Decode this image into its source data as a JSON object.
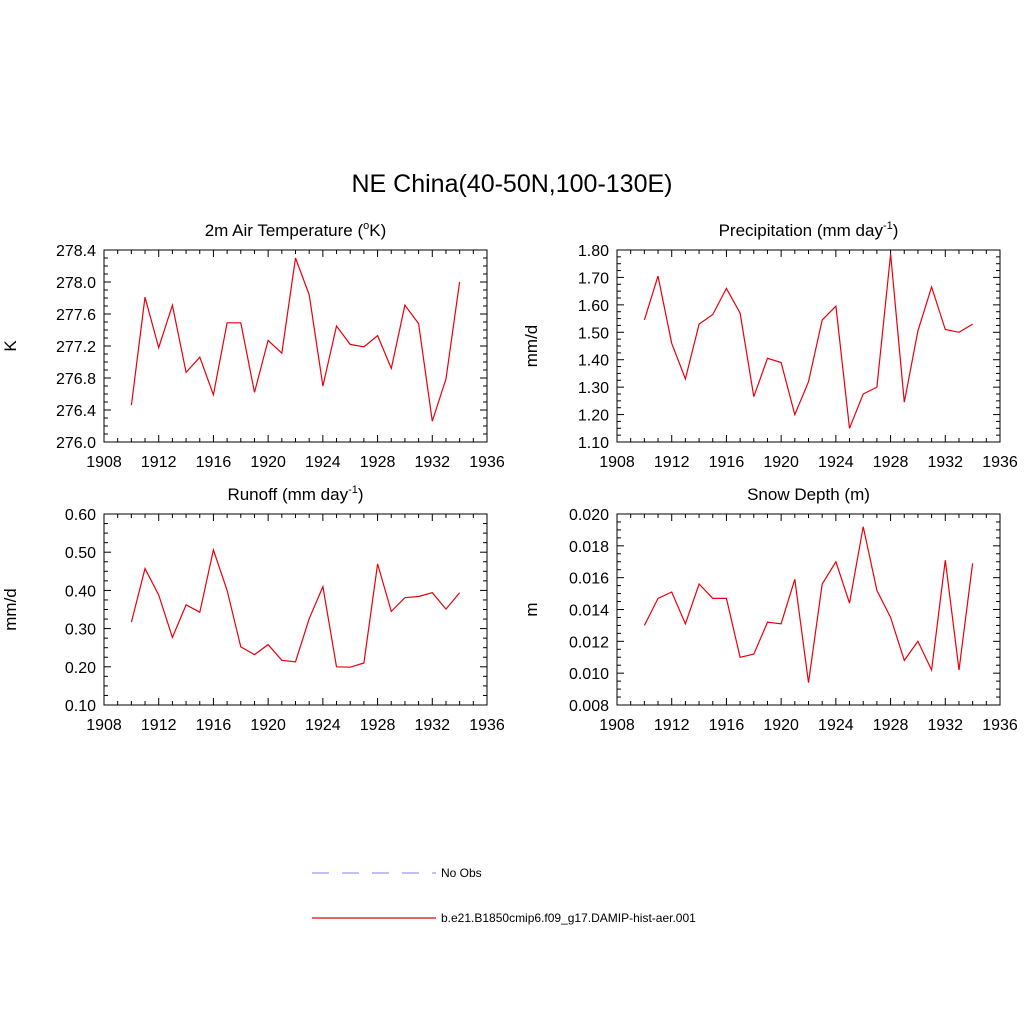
{
  "title": "NE China(40-50N,100-130E)",
  "colors": {
    "model_line": "#e8000b",
    "obs_line": "#9999ff"
  },
  "legend": {
    "items": [
      {
        "label": "No Obs",
        "style": "dashed",
        "color": "#9999ff"
      },
      {
        "label": "b.e21.B1850cmip6.f09_g17.DAMIP-hist-aer.001",
        "style": "solid",
        "color": "#e8000b"
      }
    ]
  },
  "chart_data": [
    {
      "type": "line",
      "title": "2m Air Temperature (",
      "title_super": "o",
      "title_tail": "K)",
      "ylabel": "K",
      "xlim": [
        1908,
        1936
      ],
      "ylim": [
        276.0,
        278.4
      ],
      "xticks": [
        "1908",
        "1912",
        "1916",
        "1920",
        "1924",
        "1928",
        "1932",
        "1936"
      ],
      "yticks": [
        "276.0",
        "276.4",
        "276.8",
        "277.2",
        "277.6",
        "278.0",
        "278.4"
      ],
      "series": [
        {
          "name": "b.e21.B1850cmip6.f09_g17.DAMIP-hist-aer.001",
          "x": [
            1910,
            1911,
            1912,
            1913,
            1914,
            1915,
            1916,
            1917,
            1918,
            1919,
            1920,
            1921,
            1922,
            1923,
            1924,
            1925,
            1926,
            1927,
            1928,
            1929,
            1930,
            1931,
            1932,
            1933,
            1934
          ],
          "y": [
            276.46,
            277.81,
            277.18,
            277.71,
            276.87,
            277.06,
            276.59,
            277.49,
            277.49,
            276.62,
            277.27,
            277.11,
            278.3,
            277.84,
            276.7,
            277.45,
            277.22,
            277.19,
            277.33,
            276.92,
            277.71,
            277.48,
            276.26,
            276.79,
            278.0
          ]
        }
      ]
    },
    {
      "type": "line",
      "title": "Precipitation (mm day",
      "title_super": "-1",
      "title_tail": ")",
      "ylabel": "mm/d",
      "xlim": [
        1908,
        1936
      ],
      "ylim": [
        1.1,
        1.8
      ],
      "xticks": [
        "1908",
        "1912",
        "1916",
        "1920",
        "1924",
        "1928",
        "1932",
        "1936"
      ],
      "yticks": [
        "1.10",
        "1.20",
        "1.30",
        "1.40",
        "1.50",
        "1.60",
        "1.70",
        "1.80"
      ],
      "series": [
        {
          "name": "b.e21.B1850cmip6.f09_g17.DAMIP-hist-aer.001",
          "x": [
            1910,
            1911,
            1912,
            1913,
            1914,
            1915,
            1916,
            1917,
            1918,
            1919,
            1920,
            1921,
            1922,
            1923,
            1924,
            1925,
            1926,
            1927,
            1928,
            1929,
            1930,
            1931,
            1932,
            1933,
            1934
          ],
          "y": [
            1.545,
            1.705,
            1.46,
            1.33,
            1.53,
            1.565,
            1.66,
            1.57,
            1.265,
            1.405,
            1.39,
            1.2,
            1.32,
            1.545,
            1.595,
            1.15,
            1.275,
            1.3,
            1.785,
            1.245,
            1.505,
            1.665,
            1.51,
            1.5,
            1.53
          ]
        }
      ]
    },
    {
      "type": "line",
      "title": "Runoff (mm day",
      "title_super": "-1",
      "title_tail": ")",
      "ylabel": "mm/d",
      "xlim": [
        1908,
        1936
      ],
      "ylim": [
        0.1,
        0.6
      ],
      "xticks": [
        "1908",
        "1912",
        "1916",
        "1920",
        "1924",
        "1928",
        "1932",
        "1936"
      ],
      "yticks": [
        "0.10",
        "0.20",
        "0.30",
        "0.40",
        "0.50",
        "0.60"
      ],
      "series": [
        {
          "name": "b.e21.B1850cmip6.f09_g17.DAMIP-hist-aer.001",
          "x": [
            1910,
            1911,
            1912,
            1913,
            1914,
            1915,
            1916,
            1917,
            1918,
            1919,
            1920,
            1921,
            1922,
            1923,
            1924,
            1925,
            1926,
            1927,
            1928,
            1929,
            1930,
            1931,
            1932,
            1933,
            1934
          ],
          "y": [
            0.317,
            0.457,
            0.388,
            0.277,
            0.362,
            0.343,
            0.506,
            0.4,
            0.252,
            0.232,
            0.258,
            0.217,
            0.213,
            0.326,
            0.41,
            0.2,
            0.199,
            0.21,
            0.469,
            0.345,
            0.381,
            0.384,
            0.394,
            0.351,
            0.394
          ]
        }
      ]
    },
    {
      "type": "line",
      "title": "Snow Depth (m)",
      "title_super": "",
      "title_tail": "",
      "ylabel": "m",
      "xlim": [
        1908,
        1936
      ],
      "ylim": [
        0.008,
        0.02
      ],
      "xticks": [
        "1908",
        "1912",
        "1916",
        "1920",
        "1924",
        "1928",
        "1932",
        "1936"
      ],
      "yticks": [
        "0.008",
        "0.010",
        "0.012",
        "0.014",
        "0.016",
        "0.018",
        "0.020"
      ],
      "series": [
        {
          "name": "b.e21.B1850cmip6.f09_g17.DAMIP-hist-aer.001",
          "x": [
            1910,
            1911,
            1912,
            1913,
            1914,
            1915,
            1916,
            1917,
            1918,
            1919,
            1920,
            1921,
            1922,
            1923,
            1924,
            1925,
            1926,
            1927,
            1928,
            1929,
            1930,
            1931,
            1932,
            1933,
            1934
          ],
          "y": [
            0.013,
            0.0147,
            0.0151,
            0.0131,
            0.0156,
            0.0147,
            0.0147,
            0.011,
            0.0112,
            0.0132,
            0.0131,
            0.0159,
            0.0094,
            0.0156,
            0.017,
            0.0144,
            0.0192,
            0.0152,
            0.0135,
            0.0108,
            0.012,
            0.0102,
            0.0171,
            0.0102,
            0.0169
          ]
        }
      ]
    }
  ]
}
